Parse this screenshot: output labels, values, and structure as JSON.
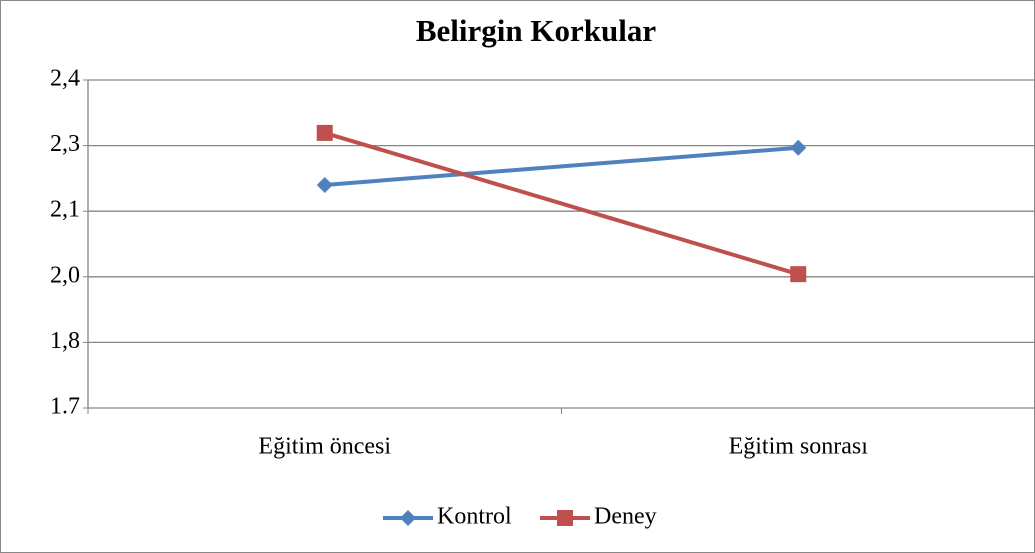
{
  "chart_data": {
    "type": "line",
    "title": "Belirgin Korkular",
    "categories": [
      "Eğitim öncesi",
      "Eğitim sonrası"
    ],
    "series": [
      {
        "name": "Kontrol",
        "color": "#4f81bd",
        "marker": "diamond",
        "values": [
          2.21,
          2.295
        ]
      },
      {
        "name": "Deney",
        "color": "#c0504d",
        "marker": "square",
        "values": [
          2.329,
          2.006
        ]
      }
    ],
    "ylim": [
      1.7,
      2.45
    ],
    "yticks": [
      1.7,
      {
        "value": 1.85,
        "label": "1,8"
      },
      {
        "value": 2.0,
        "label": "2,0"
      },
      {
        "value": 2.15,
        "label": "2,1"
      },
      {
        "value": 2.3,
        "label": "2,3"
      },
      {
        "value": 2.45,
        "label": "2,4"
      }
    ],
    "grid": true,
    "legend": "bottom"
  }
}
